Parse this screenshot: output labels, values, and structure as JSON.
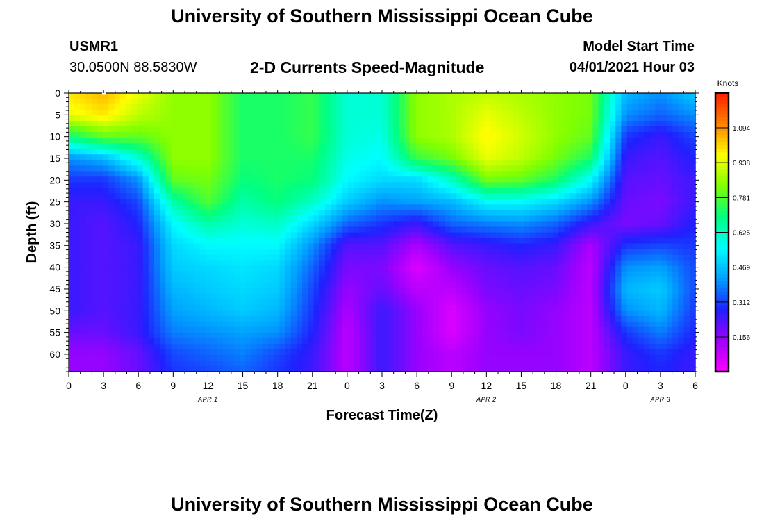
{
  "header": {
    "title": "University of Southern Mississippi Ocean Cube",
    "station_id": "USMR1",
    "location": "30.0500N  88.5830W",
    "subtitle": "2-D Currents Speed-Magnitude",
    "model_start_label": "Model Start Time",
    "model_start_value": "04/01/2021 Hour 03"
  },
  "footer": {
    "title": "University of Southern Mississippi Ocean Cube"
  },
  "chart_data": {
    "type": "heatmap",
    "xlabel": "Forecast Time(Z)",
    "ylabel": "Depth (ft)",
    "ylim": [
      0,
      64
    ],
    "xlim_hours": [
      0,
      54
    ],
    "y_ticks": [
      0,
      5,
      10,
      15,
      20,
      25,
      30,
      35,
      40,
      45,
      50,
      55,
      60
    ],
    "x_tick_labels": [
      "0",
      "3",
      "6",
      "9",
      "12",
      "15",
      "18",
      "21",
      "0",
      "3",
      "6",
      "9",
      "12",
      "15",
      "18",
      "21",
      "0",
      "3",
      "6"
    ],
    "date_labels": [
      {
        "text": "APR 1",
        "hour": 12
      },
      {
        "text": "APR 2",
        "hour": 36
      },
      {
        "text": "APR 3",
        "hour": 51
      }
    ],
    "colorbar": {
      "unit": "Knots",
      "range": [
        0,
        1.25
      ],
      "tick_labels": [
        "1.094",
        "0.938",
        "0.781",
        "0.625",
        "0.469",
        "0.312",
        "0.156"
      ],
      "tick_values": [
        1.094,
        0.938,
        0.781,
        0.625,
        0.469,
        0.312,
        0.156
      ],
      "colors": [
        "#ff00ff",
        "#a000ff",
        "#2020ff",
        "#00a0ff",
        "#00ffff",
        "#00ff80",
        "#80ff00",
        "#ffff00",
        "#ff8000",
        "#ff2000"
      ]
    },
    "grid_depths": [
      0,
      5,
      10,
      15,
      20,
      25,
      30,
      35,
      40,
      45,
      50,
      55,
      60,
      64
    ],
    "grid_hours": [
      0,
      3,
      6,
      9,
      12,
      15,
      18,
      21,
      24,
      27,
      30,
      33,
      36,
      39,
      42,
      45,
      48,
      51,
      54
    ],
    "speed_columns_knots": [
      [
        1.0,
        0.95,
        0.7,
        0.4,
        0.3,
        0.25,
        0.25,
        0.25,
        0.25,
        0.25,
        0.25,
        0.2,
        0.15,
        0.15
      ],
      [
        1.05,
        1.0,
        0.8,
        0.45,
        0.3,
        0.25,
        0.22,
        0.22,
        0.22,
        0.22,
        0.22,
        0.2,
        0.15,
        0.15
      ],
      [
        0.95,
        0.9,
        0.8,
        0.6,
        0.4,
        0.32,
        0.28,
        0.25,
        0.25,
        0.25,
        0.25,
        0.25,
        0.2,
        0.2
      ],
      [
        0.85,
        0.85,
        0.85,
        0.85,
        0.8,
        0.65,
        0.55,
        0.5,
        0.48,
        0.45,
        0.42,
        0.38,
        0.32,
        0.3
      ],
      [
        0.85,
        0.85,
        0.85,
        0.85,
        0.82,
        0.78,
        0.65,
        0.55,
        0.5,
        0.48,
        0.45,
        0.4,
        0.35,
        0.32
      ],
      [
        0.72,
        0.72,
        0.72,
        0.72,
        0.7,
        0.65,
        0.6,
        0.55,
        0.52,
        0.5,
        0.48,
        0.42,
        0.38,
        0.35
      ],
      [
        0.72,
        0.72,
        0.72,
        0.72,
        0.72,
        0.7,
        0.62,
        0.55,
        0.5,
        0.48,
        0.45,
        0.4,
        0.32,
        0.3
      ],
      [
        0.75,
        0.75,
        0.75,
        0.72,
        0.7,
        0.62,
        0.5,
        0.4,
        0.35,
        0.32,
        0.3,
        0.28,
        0.25,
        0.25
      ],
      [
        0.6,
        0.6,
        0.6,
        0.58,
        0.55,
        0.48,
        0.35,
        0.22,
        0.18,
        0.15,
        0.12,
        0.1,
        0.1,
        0.1
      ],
      [
        0.6,
        0.6,
        0.58,
        0.55,
        0.5,
        0.4,
        0.3,
        0.22,
        0.18,
        0.2,
        0.25,
        0.25,
        0.25,
        0.25
      ],
      [
        0.85,
        0.85,
        0.85,
        0.75,
        0.5,
        0.42,
        0.25,
        0.12,
        0.05,
        0.1,
        0.15,
        0.15,
        0.15,
        0.15
      ],
      [
        0.88,
        0.88,
        0.88,
        0.82,
        0.62,
        0.45,
        0.35,
        0.22,
        0.15,
        0.1,
        0.05,
        0.05,
        0.1,
        0.1
      ],
      [
        0.9,
        0.95,
        0.98,
        0.95,
        0.82,
        0.55,
        0.38,
        0.25,
        0.2,
        0.18,
        0.15,
        0.15,
        0.15,
        0.15
      ],
      [
        0.88,
        0.9,
        0.92,
        0.9,
        0.8,
        0.55,
        0.4,
        0.28,
        0.22,
        0.2,
        0.18,
        0.18,
        0.15,
        0.15
      ],
      [
        0.85,
        0.85,
        0.85,
        0.82,
        0.72,
        0.5,
        0.35,
        0.25,
        0.2,
        0.18,
        0.15,
        0.15,
        0.15,
        0.15
      ],
      [
        0.82,
        0.82,
        0.8,
        0.72,
        0.55,
        0.4,
        0.25,
        0.12,
        0.1,
        0.1,
        0.1,
        0.1,
        0.1,
        0.1
      ],
      [
        0.45,
        0.4,
        0.3,
        0.25,
        0.22,
        0.2,
        0.18,
        0.3,
        0.4,
        0.45,
        0.4,
        0.3,
        0.25,
        0.25
      ],
      [
        0.4,
        0.35,
        0.25,
        0.22,
        0.2,
        0.18,
        0.2,
        0.32,
        0.42,
        0.48,
        0.45,
        0.38,
        0.3,
        0.28
      ],
      [
        0.48,
        0.4,
        0.32,
        0.28,
        0.25,
        0.25,
        0.28,
        0.3,
        0.32,
        0.32,
        0.3,
        0.28,
        0.25,
        0.25
      ]
    ]
  }
}
